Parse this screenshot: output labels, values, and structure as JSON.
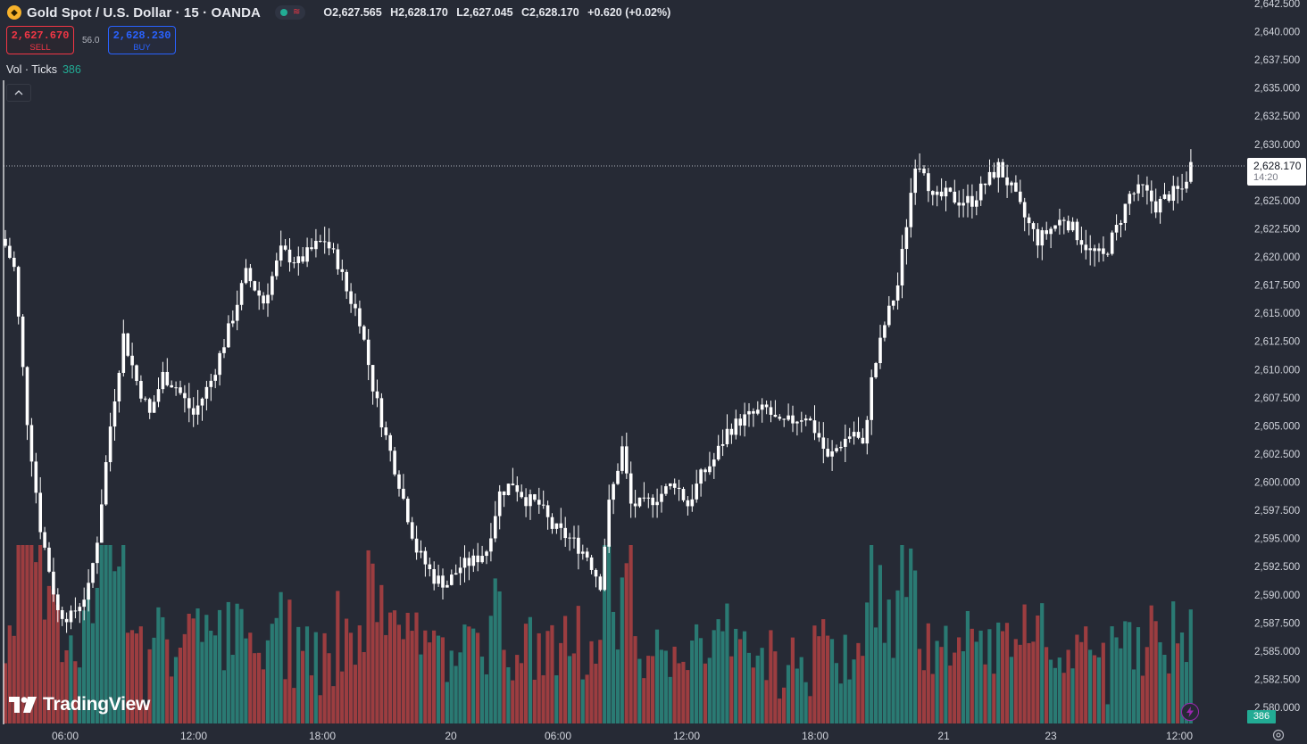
{
  "header": {
    "icon": "gold-coin-icon",
    "symbol": "Gold Spot / U.S. Dollar · 15 · OANDA",
    "ohlc": {
      "open": "O2,627.565",
      "high": "H2,628.170",
      "low": "L2,627.045",
      "close": "C2,628.170",
      "change": "+0.620 (+0.02%)"
    }
  },
  "trade": {
    "sell_price": "2,627.670",
    "sell_label": "SELL",
    "spread": "56.0",
    "buy_price": "2,628.230",
    "buy_label": "BUY"
  },
  "volume_legend": {
    "label": "Vol · Ticks",
    "value": "386"
  },
  "last_price": {
    "price": "2,628.170",
    "countdown": "14:20"
  },
  "volume_badge": "386",
  "logo": "TradingView",
  "colors": {
    "background": "#262a35",
    "up": "#ffffff",
    "down": "#ffffff",
    "vol_up": "#2a7a73",
    "vol_down": "#9c3d40",
    "accent_green": "#22ab94",
    "accent_red": "#f23645",
    "accent_blue": "#2962ff"
  },
  "chart_data": {
    "type": "candlestick",
    "timeframe": "15",
    "y_range": [
      2580,
      2642.5
    ],
    "y_ticks": [
      "2,642.500",
      "2,640.000",
      "2,637.500",
      "2,635.000",
      "2,632.500",
      "2,630.000",
      "2,627.500",
      "2,625.000",
      "2,622.500",
      "2,620.000",
      "2,617.500",
      "2,615.000",
      "2,612.500",
      "2,610.000",
      "2,607.500",
      "2,605.000",
      "2,602.500",
      "2,600.000",
      "2,597.500",
      "2,595.000",
      "2,592.500",
      "2,590.000",
      "2,587.500",
      "2,585.000",
      "2,582.500",
      "2,580.000"
    ],
    "x_ticks": [
      "06:00",
      "12:00",
      "18:00",
      "20",
      "06:00",
      "12:00",
      "18:00",
      "21",
      "23",
      "12:00"
    ],
    "last_price": 2628.17,
    "keypoints": [
      [
        0,
        2621.0
      ],
      [
        2,
        2619.0
      ],
      [
        5,
        2605.5
      ],
      [
        8,
        2596.0
      ],
      [
        12,
        2588.5
      ],
      [
        15,
        2588.0
      ],
      [
        19,
        2590.5
      ],
      [
        21,
        2595.0
      ],
      [
        24,
        2605.0
      ],
      [
        27,
        2613.0
      ],
      [
        30,
        2609.0
      ],
      [
        33,
        2606.0
      ],
      [
        36,
        2609.5
      ],
      [
        39,
        2608.5
      ],
      [
        43,
        2606.0
      ],
      [
        47,
        2609.0
      ],
      [
        51,
        2613.5
      ],
      [
        55,
        2618.5
      ],
      [
        59,
        2616.0
      ],
      [
        63,
        2620.5
      ],
      [
        67,
        2619.5
      ],
      [
        71,
        2621.0
      ],
      [
        73,
        2621.5
      ],
      [
        76,
        2619.5
      ],
      [
        78,
        2617.0
      ],
      [
        81,
        2614.5
      ],
      [
        84,
        2608.5
      ],
      [
        87,
        2604.0
      ],
      [
        90,
        2600.0
      ],
      [
        94,
        2594.0
      ],
      [
        98,
        2591.5
      ],
      [
        101,
        2591.0
      ],
      [
        104,
        2592.5
      ],
      [
        107,
        2593.0
      ],
      [
        110,
        2594.0
      ],
      [
        113,
        2599.0
      ],
      [
        116,
        2600.0
      ],
      [
        119,
        2598.5
      ],
      [
        122,
        2598.0
      ],
      [
        125,
        2596.0
      ],
      [
        129,
        2595.0
      ],
      [
        133,
        2593.5
      ],
      [
        136,
        2591.0
      ],
      [
        138,
        2598.0
      ],
      [
        141,
        2603.0
      ],
      [
        143,
        2598.0
      ],
      [
        146,
        2598.0
      ],
      [
        150,
        2599.0
      ],
      [
        153,
        2600.0
      ],
      [
        156,
        2598.0
      ],
      [
        159,
        2600.5
      ],
      [
        162,
        2602.0
      ],
      [
        165,
        2604.5
      ],
      [
        168,
        2605.5
      ],
      [
        171,
        2606.0
      ],
      [
        174,
        2606.5
      ],
      [
        177,
        2605.0
      ],
      [
        180,
        2605.5
      ],
      [
        183,
        2606.0
      ],
      [
        186,
        2604.0
      ],
      [
        188,
        2602.0
      ],
      [
        191,
        2603.5
      ],
      [
        194,
        2604.5
      ],
      [
        196,
        2603.0
      ],
      [
        198,
        2609.0
      ],
      [
        201,
        2614.0
      ],
      [
        204,
        2617.5
      ],
      [
        206,
        2623.0
      ],
      [
        208,
        2628.5
      ],
      [
        210,
        2628.0
      ],
      [
        212,
        2625.0
      ],
      [
        215,
        2625.5
      ],
      [
        218,
        2625.0
      ],
      [
        221,
        2625.0
      ],
      [
        224,
        2626.5
      ],
      [
        227,
        2628.0
      ],
      [
        230,
        2626.0
      ],
      [
        233,
        2623.5
      ],
      [
        236,
        2621.5
      ],
      [
        239,
        2622.5
      ],
      [
        242,
        2623.5
      ],
      [
        245,
        2622.0
      ],
      [
        248,
        2620.5
      ],
      [
        251,
        2620.0
      ],
      [
        254,
        2622.5
      ],
      [
        257,
        2625.5
      ],
      [
        260,
        2626.0
      ],
      [
        263,
        2624.5
      ],
      [
        266,
        2625.5
      ],
      [
        269,
        2626.0
      ],
      [
        271,
        2628.17
      ]
    ]
  }
}
